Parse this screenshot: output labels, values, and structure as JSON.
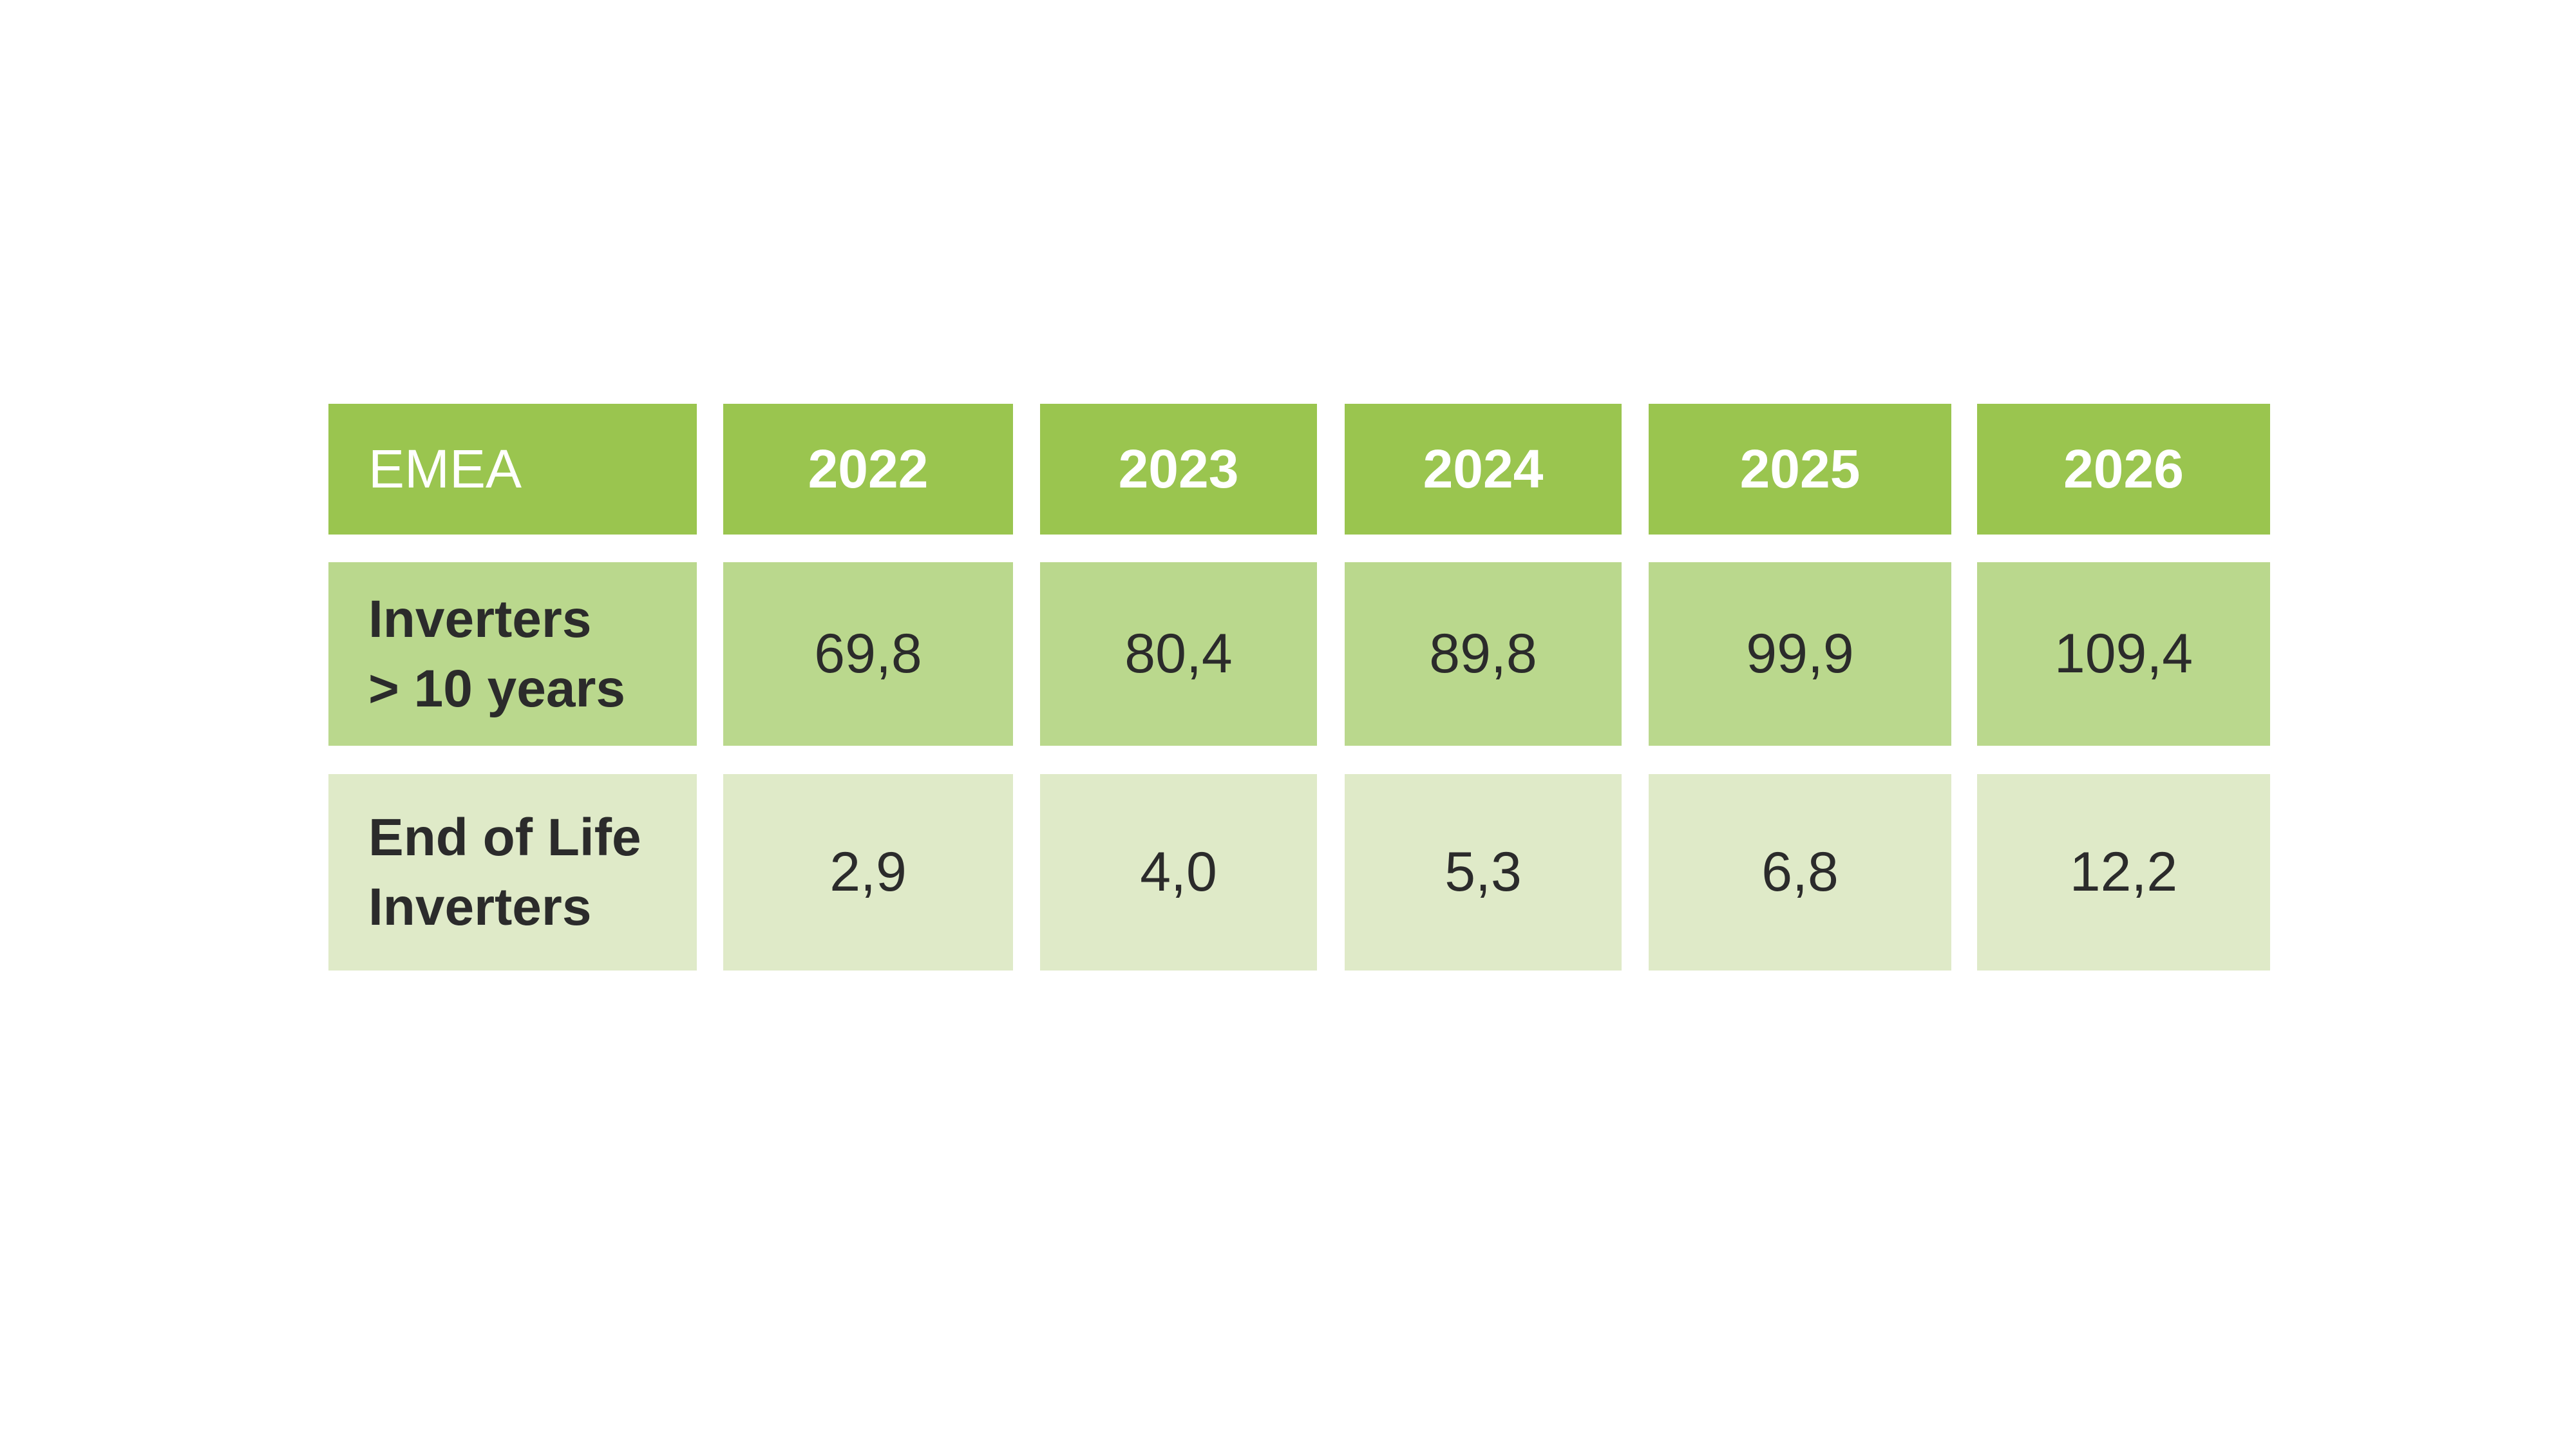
{
  "chart_data": {
    "type": "table",
    "corner_label": "EMEA",
    "columns": [
      "2022",
      "2023",
      "2024",
      "2025",
      "2026"
    ],
    "rows": [
      {
        "label_lines": [
          "Inverters",
          "> 10 years"
        ],
        "values": [
          "69,8",
          "80,4",
          "89,8",
          "99,9",
          "109,4"
        ]
      },
      {
        "label_lines": [
          "End of Life",
          "Inverters"
        ],
        "values": [
          "2,9",
          "4,0",
          "5,3",
          "6,8",
          "12,2"
        ]
      }
    ]
  },
  "colors": {
    "header_fill": "#9ac54f",
    "row1_fill": "#bad88d",
    "row2_fill": "#dfeac8",
    "header_text": "#ffffff",
    "body_text": "#2b2b2b"
  }
}
